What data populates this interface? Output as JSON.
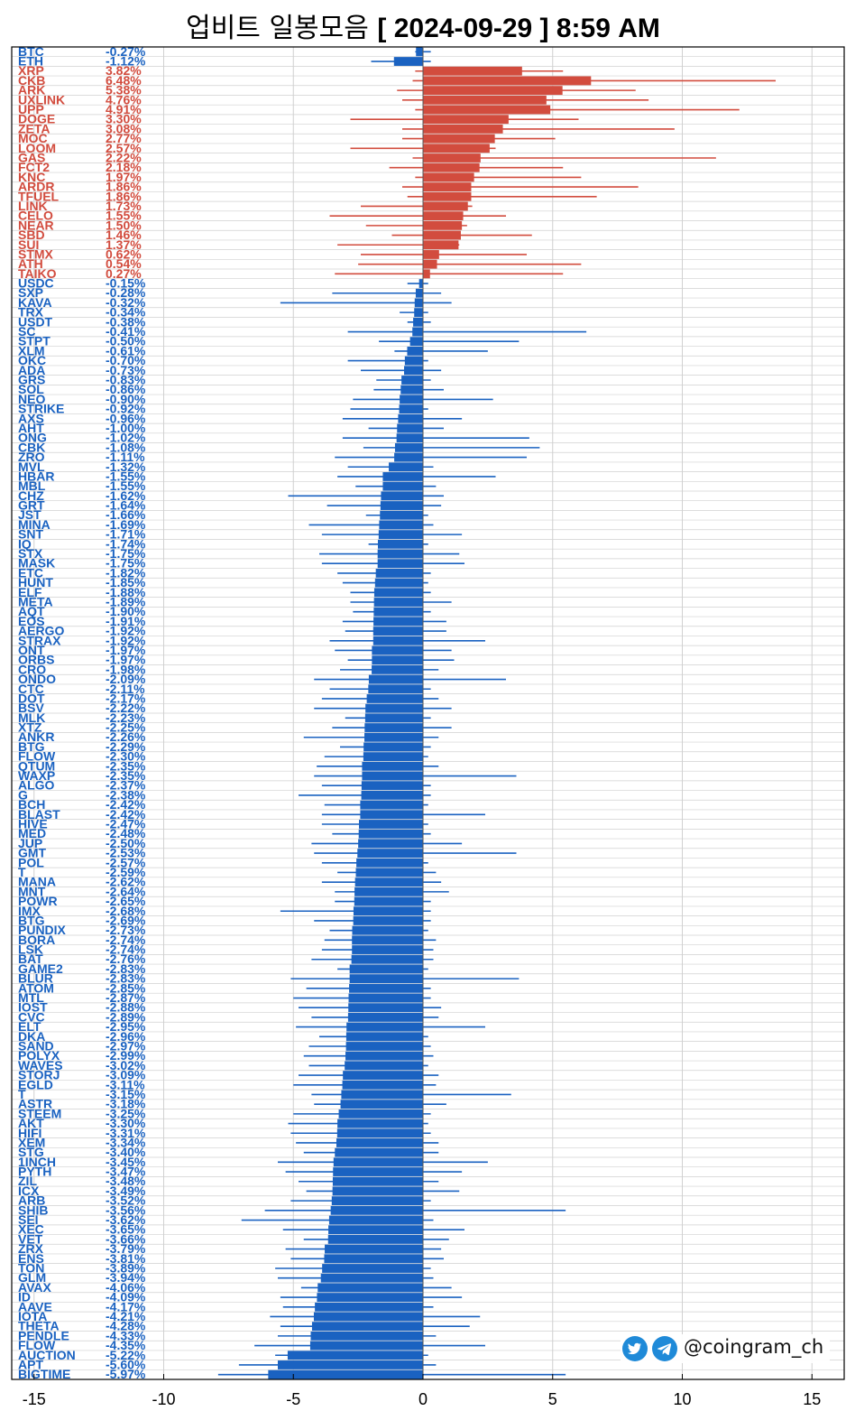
{
  "title": {
    "text_ko": "업비트 일봉모음",
    "text_date": "[ 2024-09-29 ]  8:59 AM"
  },
  "watermark": {
    "handle": "@coingram_ch",
    "icons": [
      "twitter-icon",
      "telegram-icon"
    ]
  },
  "colors": {
    "up": "#d24c3e",
    "down": "#1a62c1",
    "grid": "#d0d0d0",
    "axis": "#000000"
  },
  "chart_data": {
    "type": "bar",
    "orientation": "horizontal",
    "title": "업비트 일봉모음 [ 2024-09-29 ]  8:59 AM",
    "xlim": [
      -15.5,
      16
    ],
    "xticks": [
      -15,
      -10,
      -5,
      0,
      5,
      10,
      15
    ],
    "grid": true,
    "bars": [
      {
        "s": "BTC",
        "v": -0.27,
        "t": "-0.27%",
        "lo": -0.3,
        "hi": 0.3
      },
      {
        "s": "ETH",
        "v": -1.12,
        "t": "-1.12%",
        "lo": -2.0,
        "hi": 0.3
      },
      {
        "s": "XRP",
        "v": 3.82,
        "t": "3.82%",
        "lo": -0.3,
        "hi": 5.4
      },
      {
        "s": "CKB",
        "v": 6.48,
        "t": "6.48%",
        "lo": -0.4,
        "hi": 13.6
      },
      {
        "s": "ARK",
        "v": 5.38,
        "t": "5.38%",
        "lo": -1.0,
        "hi": 8.2
      },
      {
        "s": "UXLINK",
        "v": 4.76,
        "t": "4.76%",
        "lo": -0.8,
        "hi": 8.7
      },
      {
        "s": "UPP",
        "v": 4.91,
        "t": "4.91%",
        "lo": -0.3,
        "hi": 12.2
      },
      {
        "s": "DOGE",
        "v": 3.3,
        "t": "3.30%",
        "lo": -2.8,
        "hi": 6.0
      },
      {
        "s": "ZETA",
        "v": 3.08,
        "t": "3.08%",
        "lo": -0.8,
        "hi": 9.7
      },
      {
        "s": "MOC",
        "v": 2.77,
        "t": "2.77%",
        "lo": -0.8,
        "hi": 5.1
      },
      {
        "s": "LOOM",
        "v": 2.57,
        "t": "2.57%",
        "lo": -2.8,
        "hi": 2.8
      },
      {
        "s": "GAS",
        "v": 2.22,
        "t": "2.22%",
        "lo": -0.4,
        "hi": 11.3
      },
      {
        "s": "FCT2",
        "v": 2.18,
        "t": "2.18%",
        "lo": -1.3,
        "hi": 5.4
      },
      {
        "s": "KNC",
        "v": 1.97,
        "t": "1.97%",
        "lo": -0.3,
        "hi": 6.1
      },
      {
        "s": "ARDR",
        "v": 1.86,
        "t": "1.86%",
        "lo": -0.8,
        "hi": 8.3
      },
      {
        "s": "TFUEL",
        "v": 1.86,
        "t": "1.86%",
        "lo": -0.6,
        "hi": 6.7
      },
      {
        "s": "LINK",
        "v": 1.73,
        "t": "1.73%",
        "lo": -2.4,
        "hi": 1.9
      },
      {
        "s": "CELO",
        "v": 1.55,
        "t": "1.55%",
        "lo": -3.6,
        "hi": 3.2
      },
      {
        "s": "NEAR",
        "v": 1.5,
        "t": "1.50%",
        "lo": -2.2,
        "hi": 1.7
      },
      {
        "s": "SBD",
        "v": 1.46,
        "t": "1.46%",
        "lo": -1.2,
        "hi": 4.2
      },
      {
        "s": "SUI",
        "v": 1.37,
        "t": "1.37%",
        "lo": -3.3,
        "hi": 1.4
      },
      {
        "s": "STMX",
        "v": 0.62,
        "t": "0.62%",
        "lo": -2.4,
        "hi": 4.0
      },
      {
        "s": "ATH",
        "v": 0.54,
        "t": "0.54%",
        "lo": -2.5,
        "hi": 6.1
      },
      {
        "s": "TAIKO",
        "v": 0.27,
        "t": "0.27%",
        "lo": -3.4,
        "hi": 5.4
      },
      {
        "s": "USDC",
        "v": -0.15,
        "t": "-0.15%",
        "lo": -0.6,
        "hi": 0.2
      },
      {
        "s": "SXP",
        "v": -0.28,
        "t": "-0.28%",
        "lo": -3.5,
        "hi": 0.7
      },
      {
        "s": "KAVA",
        "v": -0.32,
        "t": "-0.32%",
        "lo": -5.5,
        "hi": 1.1
      },
      {
        "s": "TRX",
        "v": -0.34,
        "t": "-0.34%",
        "lo": -0.9,
        "hi": 0.2
      },
      {
        "s": "USDT",
        "v": -0.38,
        "t": "-0.38%",
        "lo": -0.6,
        "hi": 0.3
      },
      {
        "s": "SC",
        "v": -0.41,
        "t": "-0.41%",
        "lo": -2.9,
        "hi": 6.3
      },
      {
        "s": "STPT",
        "v": -0.5,
        "t": "-0.50%",
        "lo": -1.7,
        "hi": 3.7
      },
      {
        "s": "XLM",
        "v": -0.61,
        "t": "-0.61%",
        "lo": -1.1,
        "hi": 2.5
      },
      {
        "s": "OKC",
        "v": -0.7,
        "t": "-0.70%",
        "lo": -2.9,
        "hi": 0.2
      },
      {
        "s": "ADA",
        "v": -0.73,
        "t": "-0.73%",
        "lo": -2.4,
        "hi": 0.7
      },
      {
        "s": "GRS",
        "v": -0.83,
        "t": "-0.83%",
        "lo": -1.8,
        "hi": 0.3
      },
      {
        "s": "SOL",
        "v": -0.86,
        "t": "-0.86%",
        "lo": -1.9,
        "hi": 0.8
      },
      {
        "s": "NEO",
        "v": -0.9,
        "t": "-0.90%",
        "lo": -2.7,
        "hi": 2.7
      },
      {
        "s": "STRIKE",
        "v": -0.92,
        "t": "-0.92%",
        "lo": -2.8,
        "hi": 0.2
      },
      {
        "s": "AXS",
        "v": -0.96,
        "t": "-0.96%",
        "lo": -3.1,
        "hi": 1.5
      },
      {
        "s": "AHT",
        "v": -1.0,
        "t": "-1.00%",
        "lo": -2.1,
        "hi": 0.8
      },
      {
        "s": "ONG",
        "v": -1.02,
        "t": "-1.02%",
        "lo": -3.1,
        "hi": 4.1
      },
      {
        "s": "CBK",
        "v": -1.08,
        "t": "-1.08%",
        "lo": -2.3,
        "hi": 4.5
      },
      {
        "s": "ZRO",
        "v": -1.11,
        "t": "-1.11%",
        "lo": -3.4,
        "hi": 4.0
      },
      {
        "s": "MVL",
        "v": -1.32,
        "t": "-1.32%",
        "lo": -2.9,
        "hi": 0.4
      },
      {
        "s": "HBAR",
        "v": -1.55,
        "t": "-1.55%",
        "lo": -3.3,
        "hi": 2.8
      },
      {
        "s": "MBL",
        "v": -1.55,
        "t": "-1.55%",
        "lo": -2.6,
        "hi": 0.5
      },
      {
        "s": "CHZ",
        "v": -1.62,
        "t": "-1.62%",
        "lo": -5.2,
        "hi": 0.8
      },
      {
        "s": "GRT",
        "v": -1.64,
        "t": "-1.64%",
        "lo": -3.7,
        "hi": 0.7
      },
      {
        "s": "JST",
        "v": -1.66,
        "t": "-1.66%",
        "lo": -2.2,
        "hi": 0.2
      },
      {
        "s": "MINA",
        "v": -1.69,
        "t": "-1.69%",
        "lo": -4.4,
        "hi": 0.4
      },
      {
        "s": "SNT",
        "v": -1.71,
        "t": "-1.71%",
        "lo": -3.9,
        "hi": 1.5
      },
      {
        "s": "IQ",
        "v": -1.74,
        "t": "-1.74%",
        "lo": -2.1,
        "hi": 0.2
      },
      {
        "s": "STX",
        "v": -1.75,
        "t": "-1.75%",
        "lo": -4.0,
        "hi": 1.4
      },
      {
        "s": "MASK",
        "v": -1.75,
        "t": "-1.75%",
        "lo": -3.9,
        "hi": 1.6
      },
      {
        "s": "ETC",
        "v": -1.82,
        "t": "-1.82%",
        "lo": -3.3,
        "hi": 0.3
      },
      {
        "s": "HUNT",
        "v": -1.85,
        "t": "-1.85%",
        "lo": -3.1,
        "hi": 0.2
      },
      {
        "s": "ELF",
        "v": -1.88,
        "t": "-1.88%",
        "lo": -2.8,
        "hi": 0.3
      },
      {
        "s": "META",
        "v": -1.89,
        "t": "-1.89%",
        "lo": -2.8,
        "hi": 1.1
      },
      {
        "s": "AQT",
        "v": -1.9,
        "t": "-1.90%",
        "lo": -2.7,
        "hi": 0.3
      },
      {
        "s": "EOS",
        "v": -1.91,
        "t": "-1.91%",
        "lo": -3.1,
        "hi": 0.9
      },
      {
        "s": "AERGO",
        "v": -1.92,
        "t": "-1.92%",
        "lo": -3.0,
        "hi": 0.9
      },
      {
        "s": "STRAX",
        "v": -1.92,
        "t": "-1.92%",
        "lo": -3.6,
        "hi": 2.4
      },
      {
        "s": "ONT",
        "v": -1.97,
        "t": "-1.97%",
        "lo": -3.4,
        "hi": 1.1
      },
      {
        "s": "ORBS",
        "v": -1.97,
        "t": "-1.97%",
        "lo": -2.9,
        "hi": 1.2
      },
      {
        "s": "CRO",
        "v": -1.98,
        "t": "-1.98%",
        "lo": -3.2,
        "hi": 0.6
      },
      {
        "s": "ONDO",
        "v": -2.09,
        "t": "-2.09%",
        "lo": -4.2,
        "hi": 3.2
      },
      {
        "s": "CTC",
        "v": -2.11,
        "t": "-2.11%",
        "lo": -3.6,
        "hi": 0.3
      },
      {
        "s": "DOT",
        "v": -2.17,
        "t": "-2.17%",
        "lo": -3.9,
        "hi": 0.6
      },
      {
        "s": "BSV",
        "v": -2.22,
        "t": "-2.22%",
        "lo": -4.2,
        "hi": 1.1
      },
      {
        "s": "MLK",
        "v": -2.23,
        "t": "-2.23%",
        "lo": -3.0,
        "hi": 0.3
      },
      {
        "s": "XTZ",
        "v": -2.25,
        "t": "-2.25%",
        "lo": -3.5,
        "hi": 1.1
      },
      {
        "s": "ANKR",
        "v": -2.26,
        "t": "-2.26%",
        "lo": -4.6,
        "hi": 0.6
      },
      {
        "s": "BTG",
        "v": -2.29,
        "t": "-2.29%",
        "lo": -3.2,
        "hi": 0.3
      },
      {
        "s": "FLOW",
        "v": -2.3,
        "t": "-2.30%",
        "lo": -3.8,
        "hi": 0.2
      },
      {
        "s": "QTUM",
        "v": -2.35,
        "t": "-2.35%",
        "lo": -4.1,
        "hi": 0.6
      },
      {
        "s": "WAXP",
        "v": -2.35,
        "t": "-2.35%",
        "lo": -4.2,
        "hi": 3.6
      },
      {
        "s": "ALGO",
        "v": -2.37,
        "t": "-2.37%",
        "lo": -3.9,
        "hi": 0.3
      },
      {
        "s": "G",
        "v": -2.38,
        "t": "-2.38%",
        "lo": -4.8,
        "hi": 0.3
      },
      {
        "s": "BCH",
        "v": -2.42,
        "t": "-2.42%",
        "lo": -3.8,
        "hi": 0.2
      },
      {
        "s": "BLAST",
        "v": -2.42,
        "t": "-2.42%",
        "lo": -3.9,
        "hi": 2.4
      },
      {
        "s": "HIVE",
        "v": -2.47,
        "t": "-2.47%",
        "lo": -3.9,
        "hi": 0.2
      },
      {
        "s": "MED",
        "v": -2.48,
        "t": "-2.48%",
        "lo": -3.5,
        "hi": 0.3
      },
      {
        "s": "JUP",
        "v": -2.5,
        "t": "-2.50%",
        "lo": -4.3,
        "hi": 1.5
      },
      {
        "s": "GMT",
        "v": -2.53,
        "t": "-2.53%",
        "lo": -4.2,
        "hi": 3.6
      },
      {
        "s": "POL",
        "v": -2.57,
        "t": "-2.57%",
        "lo": -3.9,
        "hi": 0.2
      },
      {
        "s": "T",
        "v": -2.59,
        "t": "-2.59%",
        "lo": -3.3,
        "hi": 0.5
      },
      {
        "s": "MANA",
        "v": -2.62,
        "t": "-2.62%",
        "lo": -3.9,
        "hi": 0.7
      },
      {
        "s": "MNT",
        "v": -2.64,
        "t": "-2.64%",
        "lo": -3.4,
        "hi": 1.0
      },
      {
        "s": "POWR",
        "v": -2.65,
        "t": "-2.65%",
        "lo": -3.4,
        "hi": 0.3
      },
      {
        "s": "IMX",
        "v": -2.68,
        "t": "-2.68%",
        "lo": -5.5,
        "hi": 0.3
      },
      {
        "s": "BTG2",
        "d": "BTG",
        "v": -2.69,
        "t": "-2.69%",
        "lo": -4.2,
        "hi": 0.3
      },
      {
        "s": "PUNDIX",
        "v": -2.73,
        "t": "-2.73%",
        "lo": -3.6,
        "hi": 0.2
      },
      {
        "s": "BORA",
        "v": -2.74,
        "t": "-2.74%",
        "lo": -3.8,
        "hi": 0.5
      },
      {
        "s": "LSK",
        "v": -2.74,
        "t": "-2.74%",
        "lo": -3.9,
        "hi": 0.4
      },
      {
        "s": "BAT",
        "v": -2.76,
        "t": "-2.76%",
        "lo": -4.3,
        "hi": 0.4
      },
      {
        "s": "GAME2",
        "v": -2.83,
        "t": "-2.83%",
        "lo": -3.3,
        "hi": 0.2
      },
      {
        "s": "BLUR",
        "v": -2.83,
        "t": "-2.83%",
        "lo": -5.1,
        "hi": 3.7
      },
      {
        "s": "ATOM",
        "v": -2.85,
        "t": "-2.85%",
        "lo": -4.5,
        "hi": 0.3
      },
      {
        "s": "MTL",
        "v": -2.87,
        "t": "-2.87%",
        "lo": -5.0,
        "hi": 0.3
      },
      {
        "s": "IOST",
        "v": -2.88,
        "t": "-2.88%",
        "lo": -4.8,
        "hi": 0.7
      },
      {
        "s": "CVC",
        "v": -2.89,
        "t": "-2.89%",
        "lo": -4.3,
        "hi": 0.6
      },
      {
        "s": "ELT",
        "v": -2.95,
        "t": "-2.95%",
        "lo": -4.9,
        "hi": 2.4
      },
      {
        "s": "DKA",
        "v": -2.96,
        "t": "-2.96%",
        "lo": -4.0,
        "hi": 0.2
      },
      {
        "s": "SAND",
        "v": -2.97,
        "t": "-2.97%",
        "lo": -4.4,
        "hi": 0.3
      },
      {
        "s": "POLYX",
        "v": -2.99,
        "t": "-2.99%",
        "lo": -4.6,
        "hi": 0.4
      },
      {
        "s": "WAVES",
        "v": -3.02,
        "t": "-3.02%",
        "lo": -4.4,
        "hi": 0.2
      },
      {
        "s": "STORJ",
        "v": -3.09,
        "t": "-3.09%",
        "lo": -4.8,
        "hi": 0.6
      },
      {
        "s": "EGLD",
        "v": -3.11,
        "t": "-3.11%",
        "lo": -5.0,
        "hi": 0.5
      },
      {
        "s": "T2",
        "d": "T",
        "v": -3.15,
        "t": "-3.15%",
        "lo": -4.3,
        "hi": 3.4
      },
      {
        "s": "ASTR",
        "v": -3.18,
        "t": "-3.18%",
        "lo": -4.2,
        "hi": 0.9
      },
      {
        "s": "STEEM",
        "v": -3.25,
        "t": "-3.25%",
        "lo": -5.0,
        "hi": 0.3
      },
      {
        "s": "AKT",
        "v": -3.3,
        "t": "-3.30%",
        "lo": -5.2,
        "hi": 0.2
      },
      {
        "s": "HIFI",
        "v": -3.31,
        "t": "-3.31%",
        "lo": -5.1,
        "hi": 0.3
      },
      {
        "s": "XEM",
        "v": -3.34,
        "t": "-3.34%",
        "lo": -4.9,
        "hi": 0.6
      },
      {
        "s": "STG",
        "v": -3.4,
        "t": "-3.40%",
        "lo": -4.6,
        "hi": 0.6
      },
      {
        "s": "1INCH",
        "v": -3.45,
        "t": "-3.45%",
        "lo": -5.6,
        "hi": 2.5
      },
      {
        "s": "PYTH",
        "v": -3.47,
        "t": "-3.47%",
        "lo": -5.3,
        "hi": 1.5
      },
      {
        "s": "ZIL",
        "v": -3.48,
        "t": "-3.48%",
        "lo": -4.8,
        "hi": 0.6
      },
      {
        "s": "ICX",
        "v": -3.49,
        "t": "-3.49%",
        "lo": -4.5,
        "hi": 1.4
      },
      {
        "s": "ARB",
        "v": -3.52,
        "t": "-3.52%",
        "lo": -5.1,
        "hi": 0.3
      },
      {
        "s": "SHIB",
        "v": -3.56,
        "t": "-3.56%",
        "lo": -6.1,
        "hi": 5.5
      },
      {
        "s": "SEI",
        "v": -3.62,
        "t": "-3.62%",
        "lo": -7.0,
        "hi": 0.4
      },
      {
        "s": "XEC",
        "v": -3.65,
        "t": "-3.65%",
        "lo": -5.4,
        "hi": 1.6
      },
      {
        "s": "VET",
        "v": -3.66,
        "t": "-3.66%",
        "lo": -4.6,
        "hi": 1.0
      },
      {
        "s": "ZRX",
        "v": -3.79,
        "t": "-3.79%",
        "lo": -5.3,
        "hi": 0.7
      },
      {
        "s": "ENS",
        "v": -3.81,
        "t": "-3.81%",
        "lo": -5.1,
        "hi": 0.8
      },
      {
        "s": "TON",
        "v": -3.89,
        "t": "-3.89%",
        "lo": -5.7,
        "hi": 0.3
      },
      {
        "s": "GLM",
        "v": -3.94,
        "t": "-3.94%",
        "lo": -5.6,
        "hi": 0.4
      },
      {
        "s": "AVAX",
        "v": -4.06,
        "t": "-4.06%",
        "lo": -4.7,
        "hi": 1.1
      },
      {
        "s": "ID",
        "v": -4.09,
        "t": "-4.09%",
        "lo": -5.5,
        "hi": 1.5
      },
      {
        "s": "AAVE",
        "v": -4.17,
        "t": "-4.17%",
        "lo": -5.4,
        "hi": 0.4
      },
      {
        "s": "IOTA",
        "v": -4.21,
        "t": "-4.21%",
        "lo": -5.9,
        "hi": 2.2
      },
      {
        "s": "THETA",
        "v": -4.28,
        "t": "-4.28%",
        "lo": -5.5,
        "hi": 1.8
      },
      {
        "s": "PENDLE",
        "v": -4.33,
        "t": "-4.33%",
        "lo": -5.6,
        "hi": 0.5
      },
      {
        "s": "FLOW2",
        "d": "FLOW",
        "v": -4.35,
        "t": "-4.35%",
        "lo": -6.5,
        "hi": 2.4
      },
      {
        "s": "AUCTION",
        "v": -5.22,
        "t": "-5.22%",
        "lo": -5.7,
        "hi": 0.2
      },
      {
        "s": "APT",
        "v": -5.6,
        "t": "-5.60%",
        "lo": -7.1,
        "hi": 0.5
      },
      {
        "s": "BIGTIME",
        "v": -5.97,
        "t": "-5.97%",
        "lo": -7.9,
        "hi": 5.5
      }
    ]
  }
}
